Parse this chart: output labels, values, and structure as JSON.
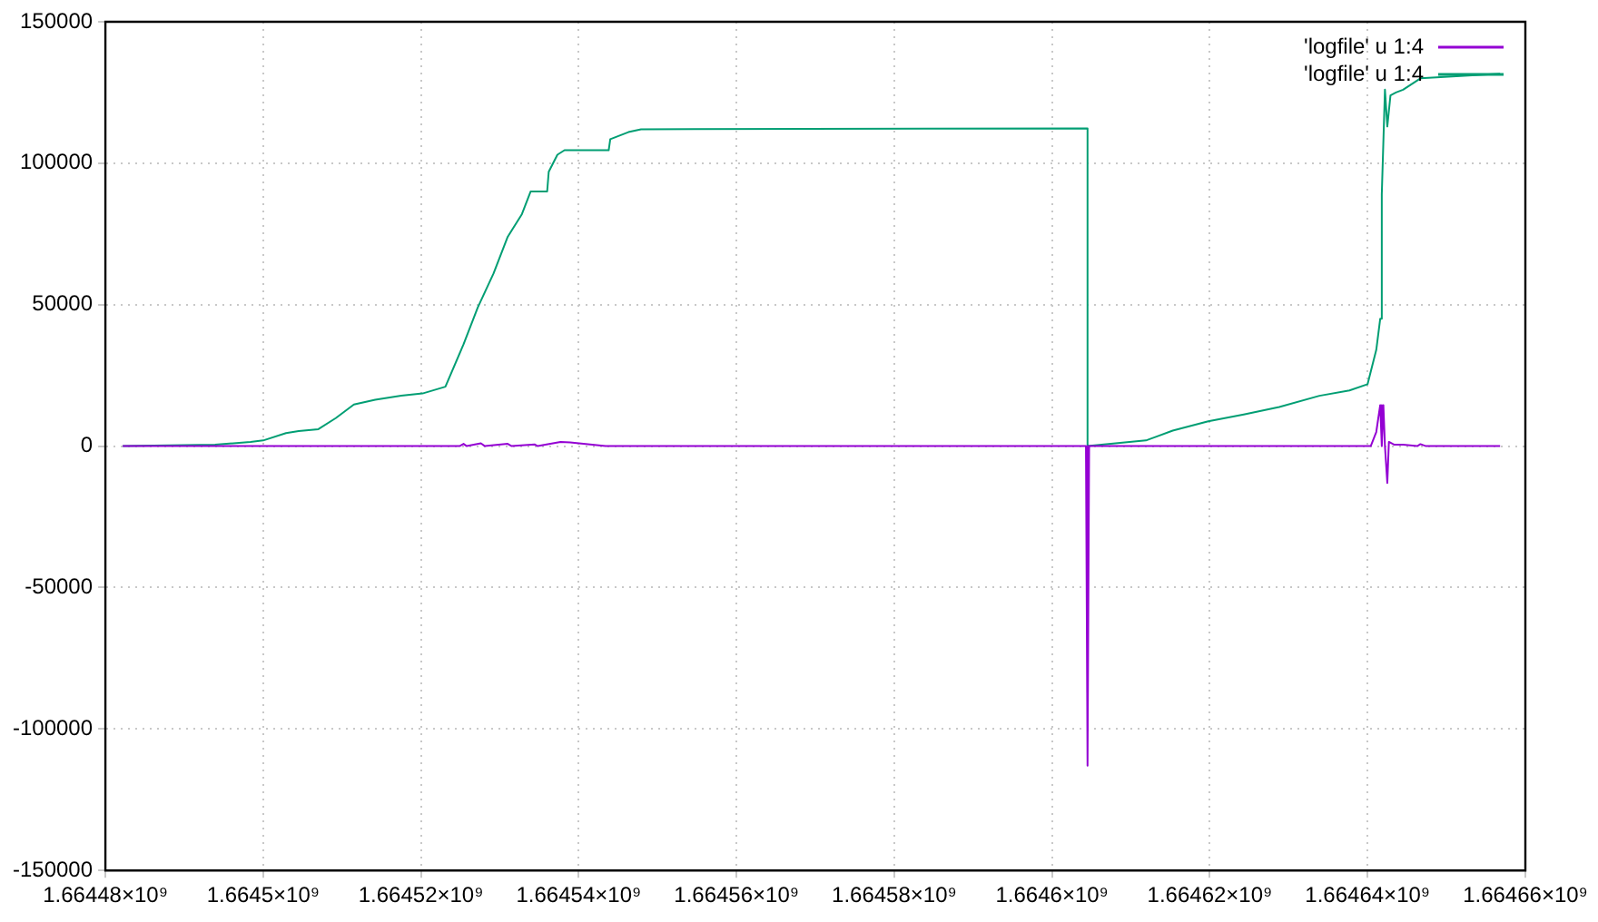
{
  "chart_data": {
    "type": "line",
    "xlim": [
      1664480000,
      1664660000
    ],
    "xticks": [
      {
        "value": 1664480000,
        "label": "1.66448×10⁹"
      },
      {
        "value": 1664500000,
        "label": "1.6645×10⁹"
      },
      {
        "value": 1664520000,
        "label": "1.66452×10⁹"
      },
      {
        "value": 1664540000,
        "label": "1.66454×10⁹"
      },
      {
        "value": 1664560000,
        "label": "1.66456×10⁹"
      },
      {
        "value": 1664580000,
        "label": "1.66458×10⁹"
      },
      {
        "value": 1664600000,
        "label": "1.6646×10⁹"
      },
      {
        "value": 1664620000,
        "label": "1.66462×10⁹"
      },
      {
        "value": 1664640000,
        "label": "1.66464×10⁹"
      },
      {
        "value": 1664660000,
        "label": "1.66466×10⁹"
      }
    ],
    "ylim": [
      -150000,
      150000
    ],
    "yticks": [
      -150000,
      -100000,
      -50000,
      0,
      50000,
      100000,
      150000
    ],
    "grid": true,
    "legend": "top right",
    "marker": "none",
    "line_style": "solid",
    "series": [
      {
        "name": "'logfile' u 1:4",
        "color": "#9400d3",
        "x": [
          1664482200,
          1664524900,
          1664525400,
          1664525800,
          1664527600,
          1664528100,
          1664531000,
          1664531500,
          1664534400,
          1664534800,
          1664537700,
          1664538900,
          1664543400,
          1664604300,
          1664604500,
          1664604700,
          1664640400,
          1664641100,
          1664641600,
          1664641800,
          1664642000,
          1664642200,
          1664642500,
          1664642700,
          1664643400,
          1664644500,
          1664646300,
          1664646700,
          1664647400,
          1664656800
        ],
        "values": [
          0,
          0,
          800,
          0,
          1000,
          0,
          800,
          0,
          600,
          0,
          1500,
          1300,
          0,
          0,
          -113000,
          0,
          0,
          5000,
          14500,
          0,
          14500,
          0,
          -13000,
          1500,
          500,
          500,
          0,
          700,
          0,
          0
        ]
      },
      {
        "name": "'logfile' u 1:4",
        "color": "#009e73",
        "x": [
          1664482200,
          1664493900,
          1664498400,
          1664500000,
          1664502900,
          1664504500,
          1664507000,
          1664509200,
          1664511500,
          1664514200,
          1664517500,
          1664520200,
          1664523100,
          1664525400,
          1664527200,
          1664529200,
          1664531000,
          1664532800,
          1664533900,
          1664536000,
          1664536200,
          1664537300,
          1664538200,
          1664543800,
          1664544000,
          1664546300,
          1664547900,
          1664604500,
          1664604500,
          1664611900,
          1664615300,
          1664619800,
          1664624300,
          1664628800,
          1664633900,
          1664637700,
          1664640000,
          1664641100,
          1664641600,
          1664641800,
          1664642200,
          1664642500,
          1664642900,
          1664643600,
          1664644500,
          1664646700,
          1664656800
        ],
        "values": [
          0,
          500,
          1500,
          2000,
          4600,
          5300,
          6000,
          9900,
          14700,
          16400,
          17800,
          18600,
          21000,
          36000,
          49000,
          61000,
          74000,
          82000,
          90000,
          90000,
          97000,
          103000,
          104600,
          104600,
          108500,
          111000,
          112000,
          112300,
          0,
          2000,
          5500,
          8800,
          11200,
          13800,
          17800,
          19700,
          21900,
          34000,
          45000,
          89000,
          126000,
          113000,
          124000,
          125000,
          126000,
          130000,
          131600
        ]
      }
    ]
  }
}
